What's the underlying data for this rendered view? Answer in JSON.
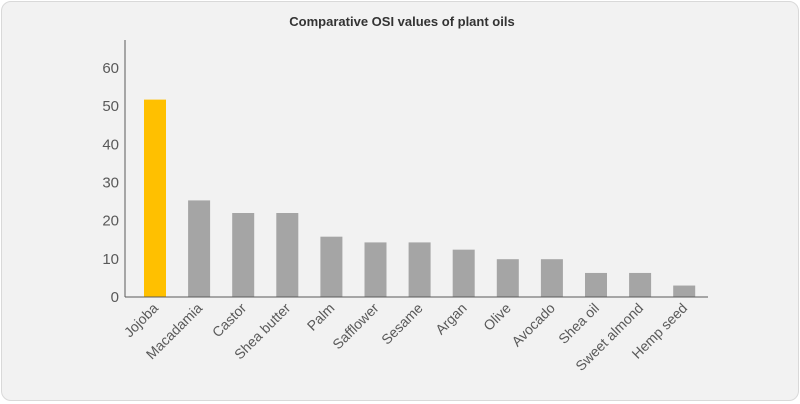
{
  "chart_data": {
    "type": "bar",
    "title": "Comparative OSI values of plant oils",
    "xlabel": "",
    "ylabel": "",
    "categories": [
      "Jojoba",
      "Macadamia",
      "Castor",
      "Shea butter",
      "Palm",
      "Safflower",
      "Sesame",
      "Argan",
      "Olive",
      "Avocado",
      "Shea oil",
      "Sweet almond",
      "Hemp seed"
    ],
    "values": [
      51.7,
      25.3,
      22,
      22,
      15.8,
      14.3,
      14.3,
      12.4,
      9.9,
      9.9,
      6.3,
      6.3,
      3
    ],
    "ylim": [
      0,
      60
    ],
    "yticks": [
      0,
      10,
      20,
      30,
      40,
      50,
      60
    ],
    "grid": false,
    "legend": "none",
    "colors": {
      "highlight": "#ffc000",
      "default": "#a5a5a5",
      "axis": "#595959",
      "background": "#f2f2f2"
    },
    "highlight_index": 0
  }
}
